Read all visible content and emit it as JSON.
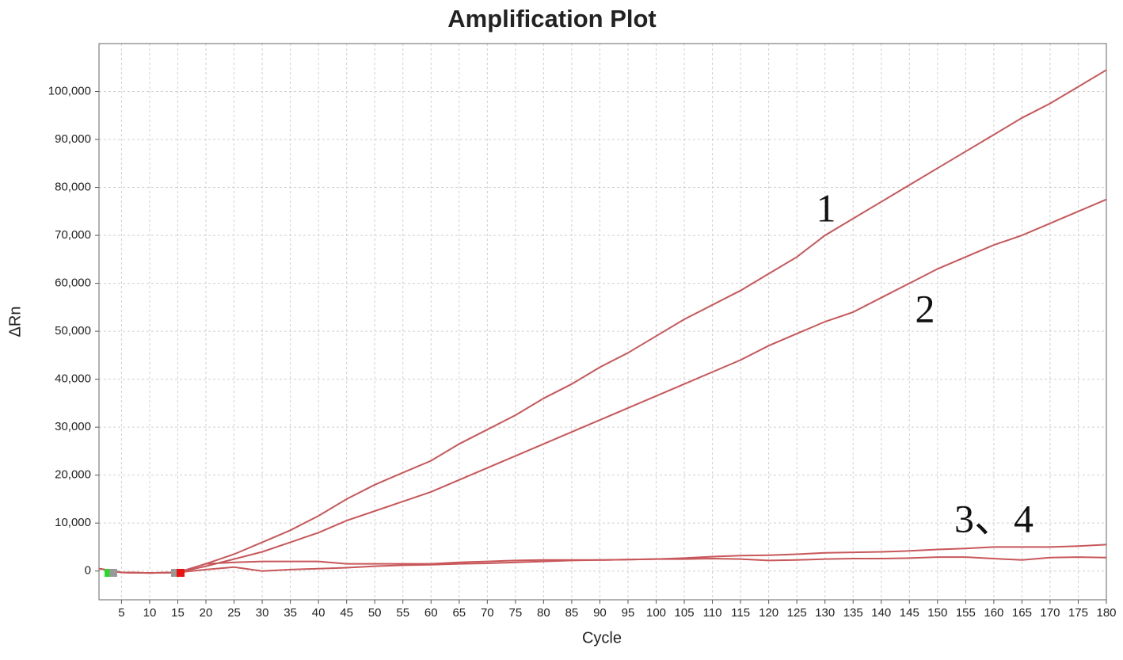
{
  "chart_data": {
    "type": "line",
    "title": "Amplification Plot",
    "x_label": "Cycle",
    "y_label": "ΔRn",
    "x": [
      1,
      5,
      10,
      15,
      20,
      25,
      30,
      35,
      40,
      45,
      50,
      55,
      60,
      65,
      70,
      75,
      80,
      85,
      90,
      95,
      100,
      105,
      110,
      115,
      120,
      125,
      130,
      135,
      140,
      145,
      150,
      155,
      160,
      165,
      170,
      175,
      180
    ],
    "series": [
      {
        "color": "#c8575a",
        "values": [
          500,
          -300,
          -400,
          -300,
          1500,
          3500,
          6000,
          8500,
          11500,
          15000,
          18000,
          20500,
          23000,
          26500,
          29500,
          32500,
          36000,
          39000,
          42500,
          45500,
          49000,
          52500,
          55500,
          58500,
          62000,
          65500,
          70000,
          73500,
          77000,
          80500,
          84000,
          87500,
          91000,
          94500,
          97500,
          101000,
          104500
        ]
      },
      {
        "color": "#c8575a",
        "values": [
          500,
          -300,
          -400,
          -300,
          1000,
          2500,
          4000,
          6000,
          8000,
          10500,
          12500,
          14500,
          16500,
          19000,
          21500,
          24000,
          26500,
          29000,
          31500,
          34000,
          36500,
          39000,
          41500,
          44000,
          47000,
          49500,
          52000,
          54000,
          57000,
          60000,
          63000,
          65500,
          68000,
          70000,
          72500,
          75000,
          77500
        ]
      },
      {
        "color": "#c8575a",
        "values": [
          500,
          -300,
          -400,
          -300,
          1500,
          1800,
          2000,
          2000,
          2000,
          1500,
          1500,
          1500,
          1500,
          1800,
          2000,
          2200,
          2300,
          2300,
          2300,
          2400,
          2500,
          2700,
          3000,
          3200,
          3300,
          3500,
          3800,
          3900,
          4000,
          4200,
          4500,
          4700,
          5000,
          5000,
          5000,
          5200,
          5500
        ]
      },
      {
        "color": "#c8575a",
        "values": [
          500,
          -300,
          -400,
          -300,
          300,
          800,
          0,
          300,
          500,
          700,
          1000,
          1200,
          1300,
          1500,
          1600,
          1800,
          2000,
          2200,
          2300,
          2400,
          2500,
          2500,
          2600,
          2500,
          2200,
          2300,
          2500,
          2600,
          2600,
          2700,
          2900,
          2900,
          2600,
          2300,
          2800,
          2900,
          2800
        ]
      }
    ],
    "annotations": [
      {
        "text": "1"
      },
      {
        "text": "2"
      },
      {
        "text": "3、4"
      }
    ],
    "xlim": [
      1,
      180
    ],
    "ylim": [
      -6000,
      110000
    ],
    "xticks": [
      5,
      10,
      15,
      20,
      25,
      30,
      35,
      40,
      45,
      50,
      55,
      60,
      65,
      70,
      75,
      80,
      85,
      90,
      95,
      100,
      105,
      110,
      115,
      120,
      125,
      130,
      135,
      140,
      145,
      150,
      155,
      160,
      165,
      170,
      175,
      180
    ],
    "yticks": [
      0,
      {
        "value": 10000,
        "label": "10,000"
      },
      {
        "value": 20000,
        "label": "20,000"
      },
      {
        "value": 30000,
        "label": "30,000"
      },
      {
        "value": 40000,
        "label": "40,000"
      },
      {
        "value": 50000,
        "label": "50,000"
      },
      {
        "value": 60000,
        "label": "60,000"
      },
      {
        "value": 70000,
        "label": "70,000"
      },
      {
        "value": 80000,
        "label": "80,000"
      },
      {
        "value": 90000,
        "label": "90,000"
      },
      {
        "value": 100000,
        "label": "100,000"
      }
    ],
    "grid": true
  }
}
